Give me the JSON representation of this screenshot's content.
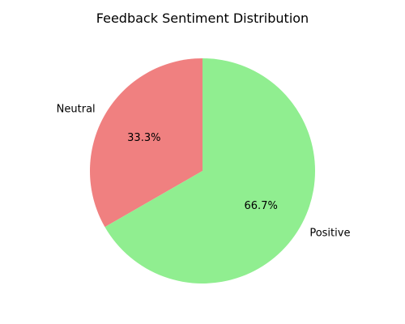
{
  "chart_data": {
    "type": "pie",
    "title": "Feedback Sentiment Distribution",
    "slices": [
      {
        "label": "Neutral",
        "value": 33.3,
        "pct_label": "33.3%",
        "color": "#f08080"
      },
      {
        "label": "Positive",
        "value": 66.7,
        "pct_label": "66.7%",
        "color": "#90ee90"
      }
    ],
    "start_angle_deg": 90,
    "direction": "counterclockwise"
  }
}
